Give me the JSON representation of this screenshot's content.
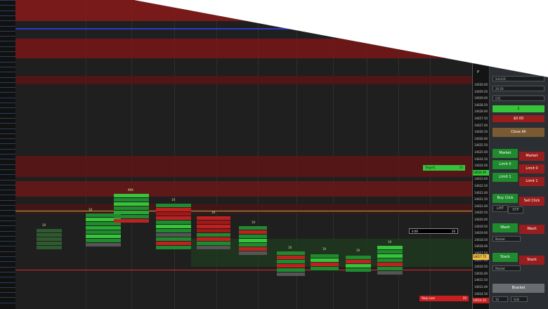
{
  "price_axis": {
    "letter": "P",
    "labels": [
      "14630.00",
      "14629.50",
      "14629.00",
      "14628.50",
      "14628.00",
      "14627.50",
      "14627.00",
      "14626.50",
      "14626.00",
      "14625.50",
      "14625.00",
      "14624.50",
      "14624.00",
      "14623.50",
      "14623.00",
      "14622.50",
      "14622.00",
      "14621.50",
      "14621.00",
      "14620.50",
      "14620.00",
      "14619.50",
      "14619.00",
      "14618.50",
      "14618.00",
      "14617.50",
      "14617.00",
      "14616.50",
      "14616.00",
      "14615.50",
      "14615.00",
      "14614.50",
      "14614.00"
    ],
    "highlight_label": "14617.75",
    "target_label": "14624.00",
    "stop_label": "14614.25"
  },
  "cluster_labels": [
    "1X",
    "99X",
    "1X",
    "1X",
    "1X",
    "1X",
    "1X",
    "1X",
    "1X",
    "1X"
  ],
  "chart_tags": {
    "target_label": "Target1",
    "target_qty": "20",
    "stop_label": "Stop Loss",
    "stop_qty": "20",
    "position_label": "0.00",
    "position_qty": "20"
  },
  "side_panel": {
    "account_select": "Sim101",
    "quantity_select": "20:20",
    "tif_select": "GTC",
    "quantity_value": "1",
    "pnl_value": "$0.00",
    "close_all": "Close All",
    "market_buy": "Market",
    "market_sell": "Market",
    "limit_buy": "Limit 0",
    "limit_sell": "Limit 0",
    "limit1_buy": "Limit 1",
    "limit1_sell": "Limit 1",
    "buy_click": "Buy Click",
    "sell_click": "Sell Click",
    "lmt": "LMT",
    "stp": "STP",
    "wash_buy": "Wash",
    "wash_sell": "Wash",
    "wash_type": "Market",
    "stack_buy": "Stack",
    "stack_sell": "Stack",
    "stack_type": "Market",
    "bracket": "Bracket",
    "bracket_select": "SLN",
    "bracket_value": "10"
  },
  "colors": {
    "buy": "#1f8a2e",
    "sell": "#9a1d1d",
    "bright_buy": "#35c43a",
    "background": "#1f1f1f"
  }
}
